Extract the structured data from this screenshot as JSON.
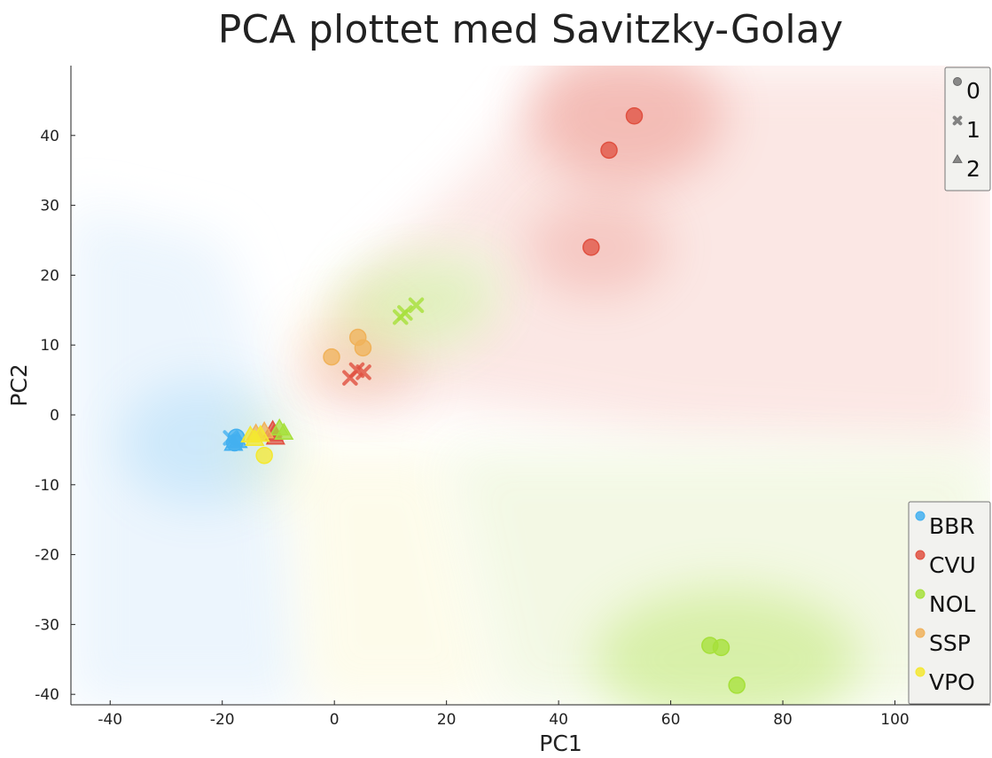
{
  "chart_data": {
    "type": "scatter",
    "title": "PCA plottet med Savitzky-Golay",
    "xlabel": "PC1",
    "ylabel": "PC2",
    "xlim": [
      -47,
      117
    ],
    "ylim": [
      -41.5,
      50
    ],
    "xticks": [
      -40,
      -20,
      0,
      20,
      40,
      60,
      80,
      100
    ],
    "yticks": [
      -40,
      -30,
      -20,
      -10,
      0,
      10,
      20,
      30,
      40
    ],
    "background": "decision-region shading per class",
    "color_legend": {
      "placement": "bottom-right",
      "entries": [
        {
          "label": "BBR",
          "color": "#43b0f0"
        },
        {
          "label": "CVU",
          "color": "#e05040"
        },
        {
          "label": "NOL",
          "color": "#a6e03a"
        },
        {
          "label": "SSP",
          "color": "#f0b25a"
        },
        {
          "label": "VPO",
          "color": "#f4e830"
        }
      ]
    },
    "marker_legend": {
      "placement": "top-right",
      "entries": [
        {
          "label": "0",
          "marker": "circle"
        },
        {
          "label": "1",
          "marker": "x"
        },
        {
          "label": "2",
          "marker": "triangle"
        }
      ]
    },
    "series": [
      {
        "name": "BBR",
        "color": "#43b0f0",
        "points": [
          {
            "x": -17.5,
            "y": -3.2,
            "marker": "circle"
          },
          {
            "x": -17.8,
            "y": -4.0,
            "marker": "circle"
          },
          {
            "x": -18.5,
            "y": -3.3,
            "marker": "x"
          },
          {
            "x": -18.0,
            "y": -4.2,
            "marker": "triangle"
          },
          {
            "x": -17.2,
            "y": -3.8,
            "marker": "triangle"
          }
        ]
      },
      {
        "name": "CVU",
        "color": "#e05040",
        "points": [
          {
            "x": 53.5,
            "y": 42.8,
            "marker": "circle"
          },
          {
            "x": 49.0,
            "y": 37.9,
            "marker": "circle"
          },
          {
            "x": 45.8,
            "y": 24.0,
            "marker": "circle"
          },
          {
            "x": 4.0,
            "y": 6.4,
            "marker": "x"
          },
          {
            "x": 5.2,
            "y": 6.1,
            "marker": "x"
          },
          {
            "x": 2.8,
            "y": 5.3,
            "marker": "x"
          },
          {
            "x": -11.0,
            "y": -2.2,
            "marker": "triangle"
          },
          {
            "x": -10.8,
            "y": -2.8,
            "marker": "triangle"
          },
          {
            "x": -10.5,
            "y": -3.3,
            "marker": "triangle"
          }
        ]
      },
      {
        "name": "NOL",
        "color": "#a6e03a",
        "points": [
          {
            "x": 67.0,
            "y": -33.0,
            "marker": "circle"
          },
          {
            "x": 69.0,
            "y": -33.3,
            "marker": "circle"
          },
          {
            "x": 71.8,
            "y": -38.7,
            "marker": "circle"
          },
          {
            "x": 14.6,
            "y": 15.7,
            "marker": "x"
          },
          {
            "x": 12.6,
            "y": 14.6,
            "marker": "x"
          },
          {
            "x": 11.8,
            "y": 14.0,
            "marker": "x"
          },
          {
            "x": -9.0,
            "y": -2.6,
            "marker": "triangle"
          },
          {
            "x": -9.8,
            "y": -2.0,
            "marker": "triangle"
          }
        ]
      },
      {
        "name": "SSP",
        "color": "#f0b25a",
        "points": [
          {
            "x": 4.2,
            "y": 11.1,
            "marker": "circle"
          },
          {
            "x": 5.1,
            "y": 9.6,
            "marker": "circle"
          },
          {
            "x": -0.5,
            "y": 8.3,
            "marker": "circle"
          },
          {
            "x": -14.0,
            "y": -2.7,
            "marker": "triangle"
          },
          {
            "x": -12.5,
            "y": -2.4,
            "marker": "triangle"
          }
        ]
      },
      {
        "name": "VPO",
        "color": "#f4e830",
        "points": [
          {
            "x": -12.5,
            "y": -5.8,
            "marker": "circle"
          },
          {
            "x": -15.0,
            "y": -3.0,
            "marker": "triangle"
          },
          {
            "x": -14.2,
            "y": -3.5,
            "marker": "triangle"
          },
          {
            "x": -13.2,
            "y": -2.9,
            "marker": "triangle"
          }
        ]
      }
    ]
  }
}
